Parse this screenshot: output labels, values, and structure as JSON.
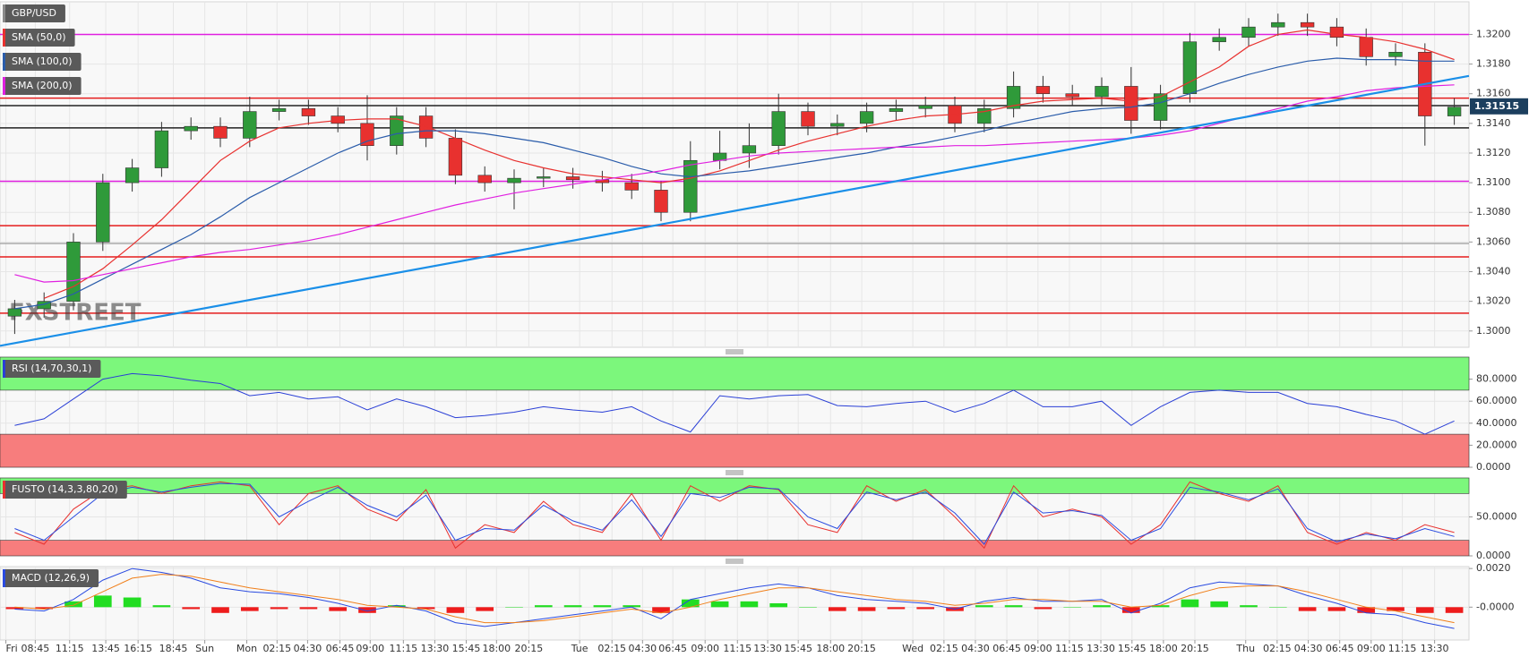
{
  "chart_data": [
    {
      "type": "candlestick",
      "name": "GBP/USD",
      "open": [
        1.301,
        1.3015,
        1.302,
        1.306,
        1.31,
        1.311,
        1.3135,
        1.3138,
        1.313,
        1.3148,
        1.315,
        1.3145,
        1.314,
        1.3125,
        1.3145,
        1.313,
        1.3105,
        1.31,
        1.3103,
        1.3104,
        1.3102,
        1.31,
        1.3095,
        1.308,
        1.3115,
        1.312,
        1.3125,
        1.3148,
        1.3138,
        1.314,
        1.3148,
        1.315,
        1.3152,
        1.314,
        1.315,
        1.3165,
        1.316,
        1.3158,
        1.3165,
        1.3142,
        1.316,
        1.3195,
        1.3198,
        1.3205,
        1.3208,
        1.3205,
        1.3198,
        1.3185,
        1.3188,
        1.3145
      ],
      "high": [
        1.3021,
        1.3026,
        1.3066,
        1.3106,
        1.3116,
        1.3141,
        1.3144,
        1.3144,
        1.3158,
        1.3156,
        1.3156,
        1.3151,
        1.3159,
        1.3151,
        1.3151,
        1.3136,
        1.3111,
        1.3109,
        1.311,
        1.311,
        1.3108,
        1.3106,
        1.3101,
        1.3128,
        1.3135,
        1.314,
        1.316,
        1.3154,
        1.3146,
        1.3154,
        1.3156,
        1.3158,
        1.3158,
        1.3156,
        1.3175,
        1.3172,
        1.3166,
        1.3171,
        1.3178,
        1.3166,
        1.3201,
        1.3204,
        1.3211,
        1.3214,
        1.3214,
        1.3211,
        1.3204,
        1.3194,
        1.3194,
        1.3157
      ],
      "low": [
        1.2998,
        1.3009,
        1.3014,
        1.3054,
        1.3094,
        1.3104,
        1.3129,
        1.3124,
        1.3124,
        1.3142,
        1.3139,
        1.3134,
        1.3115,
        1.3119,
        1.3124,
        1.3099,
        1.3094,
        1.3082,
        1.3097,
        1.3096,
        1.3094,
        1.3089,
        1.3074,
        1.3074,
        1.3109,
        1.311,
        1.3119,
        1.3132,
        1.3132,
        1.3134,
        1.3142,
        1.3144,
        1.3134,
        1.3134,
        1.3144,
        1.3154,
        1.3152,
        1.3152,
        1.3133,
        1.3136,
        1.3154,
        1.3189,
        1.3192,
        1.3199,
        1.3199,
        1.3192,
        1.3179,
        1.3179,
        1.3125,
        1.3139
      ],
      "close": [
        1.3015,
        1.302,
        1.306,
        1.31,
        1.311,
        1.3135,
        1.3138,
        1.313,
        1.3148,
        1.315,
        1.3145,
        1.314,
        1.3125,
        1.3145,
        1.313,
        1.3105,
        1.31,
        1.3103,
        1.3104,
        1.3102,
        1.31,
        1.3095,
        1.308,
        1.3115,
        1.312,
        1.3125,
        1.3148,
        1.3138,
        1.314,
        1.3148,
        1.315,
        1.3152,
        1.314,
        1.315,
        1.3165,
        1.316,
        1.3158,
        1.3165,
        1.3142,
        1.316,
        1.3195,
        1.3198,
        1.3205,
        1.3208,
        1.3205,
        1.3198,
        1.3185,
        1.3188,
        1.3145,
        1.3151
      ],
      "up_color": "#2f9a3a",
      "down_color": "#e8312f",
      "name_color": "#8a8a8a",
      "series": [
        {
          "name": "SMA (50,0)",
          "color": "#e8312f",
          "values": [
            null,
            1.3022,
            1.303,
            1.3042,
            1.3058,
            1.3075,
            1.3095,
            1.3115,
            1.3128,
            1.3137,
            1.314,
            1.3142,
            1.3143,
            1.3143,
            1.3138,
            1.313,
            1.3122,
            1.3115,
            1.311,
            1.3106,
            1.3104,
            1.3102,
            1.31,
            1.3103,
            1.3108,
            1.3115,
            1.3122,
            1.3128,
            1.3133,
            1.3138,
            1.3142,
            1.3145,
            1.3146,
            1.3148,
            1.3152,
            1.3155,
            1.3156,
            1.3157,
            1.3155,
            1.3158,
            1.3168,
            1.3178,
            1.3192,
            1.32,
            1.3203,
            1.32,
            1.3198,
            1.3195,
            1.319,
            1.3183
          ]
        },
        {
          "name": "SMA (100,0)",
          "color": "#2a5caa",
          "values": [
            1.3015,
            1.3018,
            1.3025,
            1.3035,
            1.3045,
            1.3055,
            1.3065,
            1.3077,
            1.309,
            1.31,
            1.311,
            1.312,
            1.3128,
            1.3133,
            1.3135,
            1.3135,
            1.3133,
            1.313,
            1.3127,
            1.3122,
            1.3117,
            1.3111,
            1.3106,
            1.3104,
            1.3106,
            1.3108,
            1.3111,
            1.3114,
            1.3117,
            1.312,
            1.3124,
            1.3127,
            1.3131,
            1.3135,
            1.314,
            1.3144,
            1.3148,
            1.315,
            1.3151,
            1.3154,
            1.316,
            1.3167,
            1.3173,
            1.3178,
            1.3182,
            1.3184,
            1.3183,
            1.3183,
            1.3182,
            1.3182
          ]
        },
        {
          "name": "SMA (200,0)",
          "color": "#e020e0",
          "values": [
            1.3038,
            1.3033,
            1.3034,
            1.3038,
            1.3042,
            1.3046,
            1.305,
            1.3053,
            1.3055,
            1.3058,
            1.3061,
            1.3065,
            1.307,
            1.3075,
            1.308,
            1.3085,
            1.3089,
            1.3093,
            1.3096,
            1.3099,
            1.3102,
            1.3105,
            1.3108,
            1.3112,
            1.3115,
            1.3118,
            1.312,
            1.3121,
            1.3122,
            1.3123,
            1.3124,
            1.3124,
            1.3125,
            1.3125,
            1.3126,
            1.3127,
            1.3128,
            1.3129,
            1.313,
            1.3132,
            1.3135,
            1.314,
            1.3145,
            1.315,
            1.3155,
            1.3158,
            1.3162,
            1.3164,
            1.3165,
            1.3166
          ]
        }
      ],
      "trendline": {
        "x": [
          0,
          50
        ],
        "values": [
          1.299,
          1.3172
        ],
        "color": "#1a8fe8"
      },
      "levels": [
        {
          "value": 1.32,
          "color": "#e020e0"
        },
        {
          "value": 1.3157,
          "color": "#e51c1c"
        },
        {
          "value": 1.3152,
          "color": "#222222"
        },
        {
          "value": 1.3137,
          "color": "#222222"
        },
        {
          "value": 1.3101,
          "color": "#e020e0"
        },
        {
          "value": 1.3071,
          "color": "#e51c1c"
        },
        {
          "value": 1.3059,
          "color": "#aaaaaa"
        },
        {
          "value": 1.305,
          "color": "#e51c1c"
        },
        {
          "value": 1.3012,
          "color": "#e51c1c"
        }
      ],
      "last_price": 1.31515,
      "last_price_color": "#1c3f5e",
      "watermark": "FXSTREET",
      "xlim": [
        0,
        50
      ],
      "ylim": [
        1.2989,
        1.3222
      ],
      "grid": true,
      "yticks": [
        {
          "value": 1.3,
          "label": "1.3000"
        },
        {
          "value": 1.302,
          "label": "1.3020"
        },
        {
          "value": 1.304,
          "label": "1.3040"
        },
        {
          "value": 1.306,
          "label": "1.3060"
        },
        {
          "value": 1.308,
          "label": "1.3080"
        },
        {
          "value": 1.31,
          "label": "1.3100"
        },
        {
          "value": 1.312,
          "label": "1.3120"
        },
        {
          "value": 1.314,
          "label": "1.3140"
        },
        {
          "value": 1.316,
          "label": "1.3160"
        },
        {
          "value": 1.318,
          "label": "1.3180"
        },
        {
          "value": 1.32,
          "label": "1.3200"
        }
      ]
    },
    {
      "type": "line",
      "title": "RSI (14,70,30,1)",
      "series": [
        {
          "color": "#2a3fd6",
          "values": [
            38,
            44,
            62,
            80,
            85,
            83,
            79,
            76,
            65,
            68,
            62,
            64,
            52,
            62,
            55,
            45,
            47,
            50,
            55,
            52,
            50,
            55,
            42,
            32,
            65,
            62,
            65,
            66,
            56,
            55,
            58,
            60,
            50,
            58,
            70,
            55,
            55,
            60,
            38,
            55,
            68,
            70,
            68,
            68,
            58,
            55,
            48,
            42,
            30,
            42
          ]
        }
      ],
      "zones": [
        {
          "from": 70,
          "to": 100,
          "color": "#7cf77c"
        },
        {
          "from": 0,
          "to": 30,
          "color": "#f77d7d"
        }
      ],
      "xlim": [
        0,
        50
      ],
      "ylim": [
        0,
        100
      ],
      "grid": true,
      "yticks": [
        {
          "value": 0,
          "label": "0.0000"
        },
        {
          "value": 20,
          "label": "20.0000"
        },
        {
          "value": 40,
          "label": "40.0000"
        },
        {
          "value": 60,
          "label": "60.0000"
        },
        {
          "value": 80,
          "label": "80.0000"
        }
      ]
    },
    {
      "type": "line",
      "title": "FUSTO (14,3,3,80,20)",
      "series": [
        {
          "color": "#e8312f",
          "values": [
            30,
            15,
            60,
            85,
            90,
            80,
            90,
            95,
            90,
            40,
            80,
            90,
            60,
            45,
            85,
            10,
            40,
            30,
            70,
            40,
            30,
            80,
            20,
            90,
            70,
            90,
            85,
            40,
            30,
            90,
            70,
            85,
            50,
            10,
            90,
            50,
            60,
            50,
            15,
            40,
            95,
            80,
            70,
            90,
            30,
            15,
            30,
            20,
            40,
            30
          ]
        },
        {
          "color": "#2a4be0",
          "values": [
            35,
            20,
            50,
            80,
            88,
            82,
            88,
            93,
            92,
            50,
            70,
            88,
            65,
            50,
            78,
            20,
            35,
            33,
            65,
            45,
            33,
            72,
            25,
            80,
            75,
            88,
            86,
            50,
            35,
            82,
            72,
            82,
            55,
            15,
            82,
            55,
            58,
            52,
            20,
            35,
            88,
            82,
            72,
            86,
            35,
            18,
            28,
            22,
            35,
            25
          ]
        }
      ],
      "zones": [
        {
          "from": 80,
          "to": 100,
          "color": "#7cf77c"
        },
        {
          "from": 0,
          "to": 20,
          "color": "#f77d7d"
        }
      ],
      "xlim": [
        0,
        50
      ],
      "ylim": [
        0,
        100
      ],
      "grid": true,
      "yticks": [
        {
          "value": 0,
          "label": "0.0000"
        },
        {
          "value": 50,
          "label": "50.0000"
        }
      ]
    },
    {
      "type": "macd",
      "title": "MACD (12,26,9)",
      "series": [
        {
          "color": "#2a4be0",
          "values": [
            -0.0001,
            -0.0002,
            0.0004,
            0.0014,
            0.002,
            0.0018,
            0.0015,
            0.001,
            0.0008,
            0.0007,
            0.0005,
            0.0002,
            -0.0002,
            0.0001,
            -0.0002,
            -0.0008,
            -0.001,
            -0.0008,
            -0.0006,
            -0.0004,
            -0.0002,
            0.0,
            -0.0006,
            0.0004,
            0.0007,
            0.001,
            0.0012,
            0.001,
            0.0006,
            0.0004,
            0.0003,
            0.0002,
            -0.0001,
            0.0003,
            0.0005,
            0.0003,
            0.0003,
            0.0004,
            -0.0003,
            0.0002,
            0.001,
            0.0013,
            0.0012,
            0.0011,
            0.0006,
            0.0002,
            -0.0003,
            -0.0004,
            -0.0008,
            -0.0011
          ]
        },
        {
          "color": "#f07f1a",
          "values": [
            0.0,
            -0.0001,
            0.0001,
            0.0008,
            0.0015,
            0.0017,
            0.0016,
            0.0013,
            0.001,
            0.0008,
            0.0006,
            0.0004,
            0.0001,
            0.0,
            -0.0001,
            -0.0005,
            -0.0008,
            -0.0008,
            -0.0007,
            -0.0005,
            -0.0003,
            -0.0001,
            -0.0003,
            0.0,
            0.0004,
            0.0007,
            0.001,
            0.001,
            0.0008,
            0.0006,
            0.0004,
            0.0003,
            0.0001,
            0.0002,
            0.0004,
            0.0004,
            0.0003,
            0.0003,
            0.0,
            0.0001,
            0.0006,
            0.001,
            0.0011,
            0.0011,
            0.0008,
            0.0004,
            0.0,
            -0.0002,
            -0.0005,
            -0.0008
          ]
        }
      ],
      "histogram": {
        "up_color": "#22dd22",
        "down_color": "#ee1c1c",
        "values": [
          -0.0001,
          -0.0001,
          0.0003,
          0.0006,
          0.0005,
          0.0001,
          -0.0001,
          -0.0003,
          -0.0002,
          -0.0001,
          -0.0001,
          -0.0002,
          -0.0003,
          0.0001,
          -0.0001,
          -0.0003,
          -0.0002,
          0,
          0.0001,
          0.0001,
          0.0001,
          0.0001,
          -0.0003,
          0.0004,
          0.0003,
          0.0003,
          0.0002,
          0,
          -0.0002,
          -0.0002,
          -0.0001,
          -0.0001,
          -0.0002,
          0.0001,
          0.0001,
          -0.0001,
          0,
          0.0001,
          -0.0003,
          0.0001,
          0.0004,
          0.0003,
          0.0001,
          0,
          -0.0002,
          -0.0002,
          -0.0003,
          -0.0002,
          -0.0003,
          -0.0003
        ]
      },
      "xlim": [
        0,
        50
      ],
      "ylim": [
        -0.0017,
        0.0021
      ],
      "grid": true,
      "yticks": [
        {
          "value": 0,
          "label": "-0.0000"
        },
        {
          "value": 0.002,
          "label": "0.0020"
        }
      ],
      "xticks": [
        {
          "value": 0.2,
          "label": "Fri"
        },
        {
          "value": 1.2,
          "label": "08:45"
        },
        {
          "value": 2.37,
          "label": "11:15"
        },
        {
          "value": 3.6,
          "label": "13:45"
        },
        {
          "value": 4.7,
          "label": "16:15"
        },
        {
          "value": 5.9,
          "label": "18:45"
        },
        {
          "value": 6.97,
          "label": "Sun"
        },
        {
          "value": 8.4,
          "label": "Mon"
        },
        {
          "value": 9.43,
          "label": "02:15"
        },
        {
          "value": 10.47,
          "label": "04:30"
        },
        {
          "value": 11.57,
          "label": "06:45"
        },
        {
          "value": 12.6,
          "label": "09:00"
        },
        {
          "value": 13.73,
          "label": "11:15"
        },
        {
          "value": 14.8,
          "label": "13:30"
        },
        {
          "value": 15.87,
          "label": "15:45"
        },
        {
          "value": 16.9,
          "label": "18:00"
        },
        {
          "value": 18,
          "label": "20:15"
        },
        {
          "value": 19.73,
          "label": "Tue"
        },
        {
          "value": 20.83,
          "label": "02:15"
        },
        {
          "value": 21.87,
          "label": "04:30"
        },
        {
          "value": 22.9,
          "label": "06:45"
        },
        {
          "value": 24,
          "label": "09:00"
        },
        {
          "value": 25.1,
          "label": "11:15"
        },
        {
          "value": 26.13,
          "label": "13:30"
        },
        {
          "value": 27.17,
          "label": "15:45"
        },
        {
          "value": 28.27,
          "label": "18:00"
        },
        {
          "value": 29.33,
          "label": "20:15"
        },
        {
          "value": 31.07,
          "label": "Wed"
        },
        {
          "value": 32.13,
          "label": "02:15"
        },
        {
          "value": 33.2,
          "label": "04:30"
        },
        {
          "value": 34.27,
          "label": "06:45"
        },
        {
          "value": 35.33,
          "label": "09:00"
        },
        {
          "value": 36.4,
          "label": "11:15"
        },
        {
          "value": 37.47,
          "label": "13:30"
        },
        {
          "value": 38.53,
          "label": "15:45"
        },
        {
          "value": 39.6,
          "label": "18:00"
        },
        {
          "value": 40.67,
          "label": "20:15"
        },
        {
          "value": 42.4,
          "label": "Thu"
        },
        {
          "value": 43.47,
          "label": "02:15"
        },
        {
          "value": 44.53,
          "label": "04:30"
        },
        {
          "value": 45.6,
          "label": "06:45"
        },
        {
          "value": 46.67,
          "label": "09:00"
        },
        {
          "value": 47.73,
          "label": "11:15"
        },
        {
          "value": 48.83,
          "label": "13:30"
        }
      ]
    }
  ]
}
